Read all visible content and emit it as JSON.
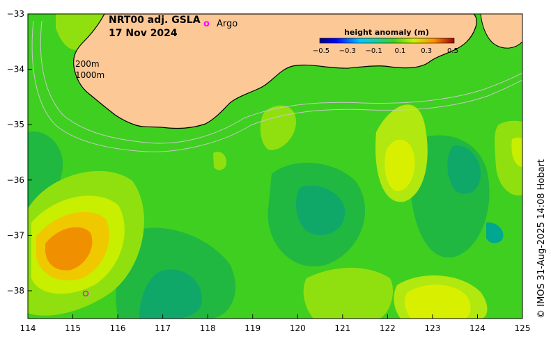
{
  "map": {
    "title_line1": "NRT00 adj. GSLA",
    "title_line2": "17 Nov 2024",
    "argo_marker": "o",
    "argo_label": "Argo",
    "depth_label_200": "200m",
    "depth_label_1000": "1000m",
    "credit": "© IMOS 31-Aug-2025 14:08 Hobart",
    "x_axis_ticks": [
      "114",
      "115",
      "116",
      "117",
      "118",
      "119",
      "120",
      "121",
      "122",
      "123",
      "124",
      "125"
    ],
    "y_axis_ticks": [
      "−33",
      "−34",
      "−35",
      "−36",
      "−37",
      "−38"
    ],
    "colorbar": {
      "title": "height anomaly (m)",
      "ticks": [
        "−0.5",
        "−0.3",
        "−0.1",
        "0.1",
        "0.3",
        "0.5"
      ]
    },
    "colors": {
      "land": "#fcc896",
      "ocean_base": "#3fcf20",
      "argo": "#ff00ff",
      "contour": "#c8c8c8"
    }
  }
}
